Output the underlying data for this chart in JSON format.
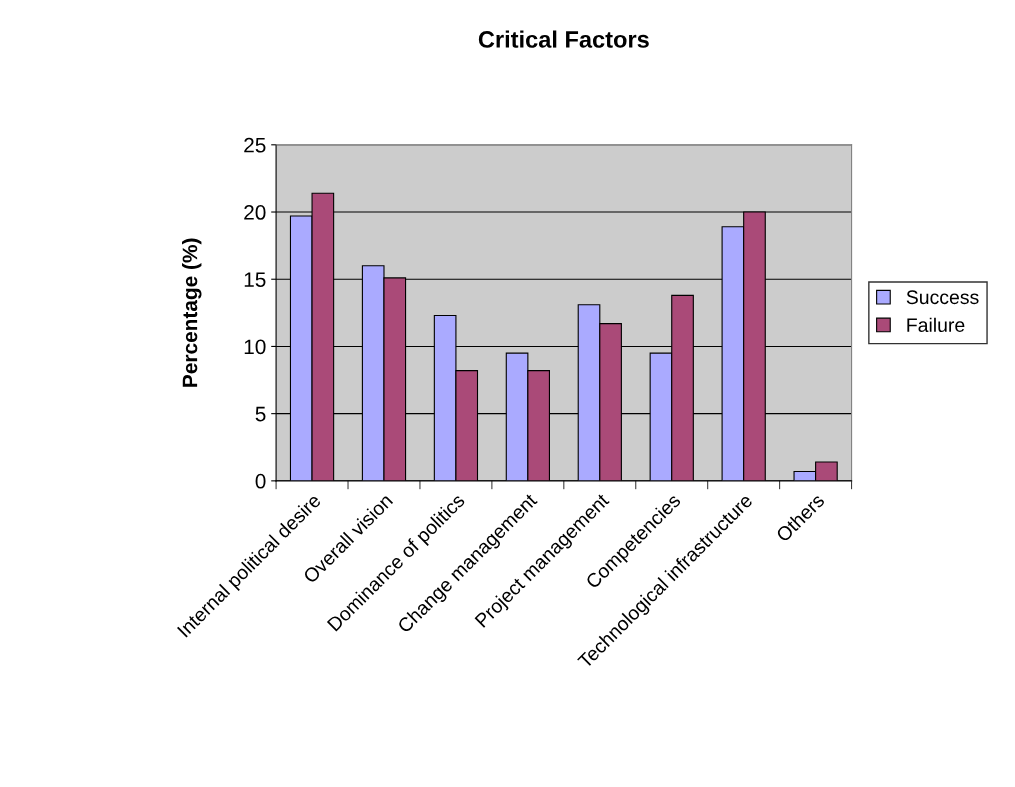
{
  "chart_data": {
    "type": "bar",
    "title": "Critical Factors",
    "ylabel": "Percentage (%)",
    "categories": [
      "Internal political desire",
      "Overall vision",
      "Dominance of politics",
      "Change management",
      "Project management",
      "Competencies",
      "Technological infrastructure",
      "Others"
    ],
    "series": [
      {
        "name": "Success",
        "color": "#aaaaff",
        "values": [
          19.7,
          16.0,
          12.3,
          9.5,
          13.1,
          9.5,
          18.9,
          0.7
        ]
      },
      {
        "name": "Failure",
        "color": "#aa4a78",
        "values": [
          21.4,
          15.1,
          8.2,
          8.2,
          11.7,
          13.8,
          20.0,
          1.4
        ]
      }
    ],
    "ylim": [
      0,
      25
    ],
    "yticks": [
      0,
      5,
      10,
      15,
      20,
      25
    ],
    "grid": "y",
    "legend": "right"
  }
}
